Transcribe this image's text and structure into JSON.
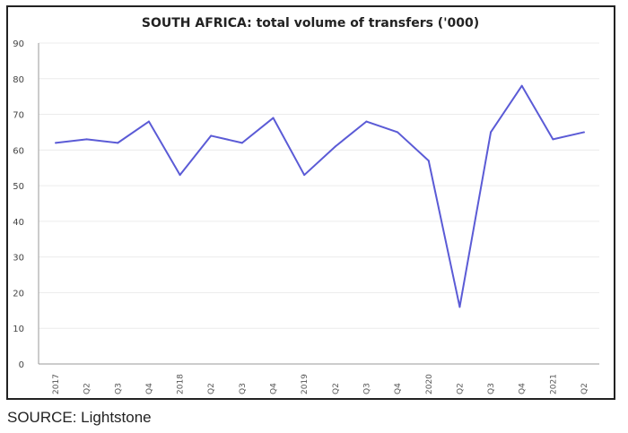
{
  "chart_data": {
    "type": "line",
    "title": "SOUTH AFRICA: total volume of transfers ('000)",
    "xlabel": "",
    "ylabel": "",
    "categories": [
      "2017",
      "Q2",
      "Q3",
      "Q4",
      "2018",
      "Q2",
      "Q3",
      "Q4",
      "2019",
      "Q2",
      "Q3",
      "Q4",
      "2020",
      "Q2",
      "Q3",
      "Q4",
      "2021",
      "Q2"
    ],
    "series": [
      {
        "values": [
          62,
          63,
          62,
          68,
          53,
          64,
          62,
          69,
          53,
          61,
          68,
          65,
          57,
          16,
          65,
          78,
          63,
          65
        ],
        "color": "#5b5bd6"
      }
    ],
    "ylim": [
      0,
      90
    ],
    "yticks": [
      0,
      10,
      20,
      30,
      40,
      50,
      60,
      70,
      80,
      90
    ],
    "grid": true,
    "legend": "none"
  },
  "source": "SOURCE: Lightstone"
}
